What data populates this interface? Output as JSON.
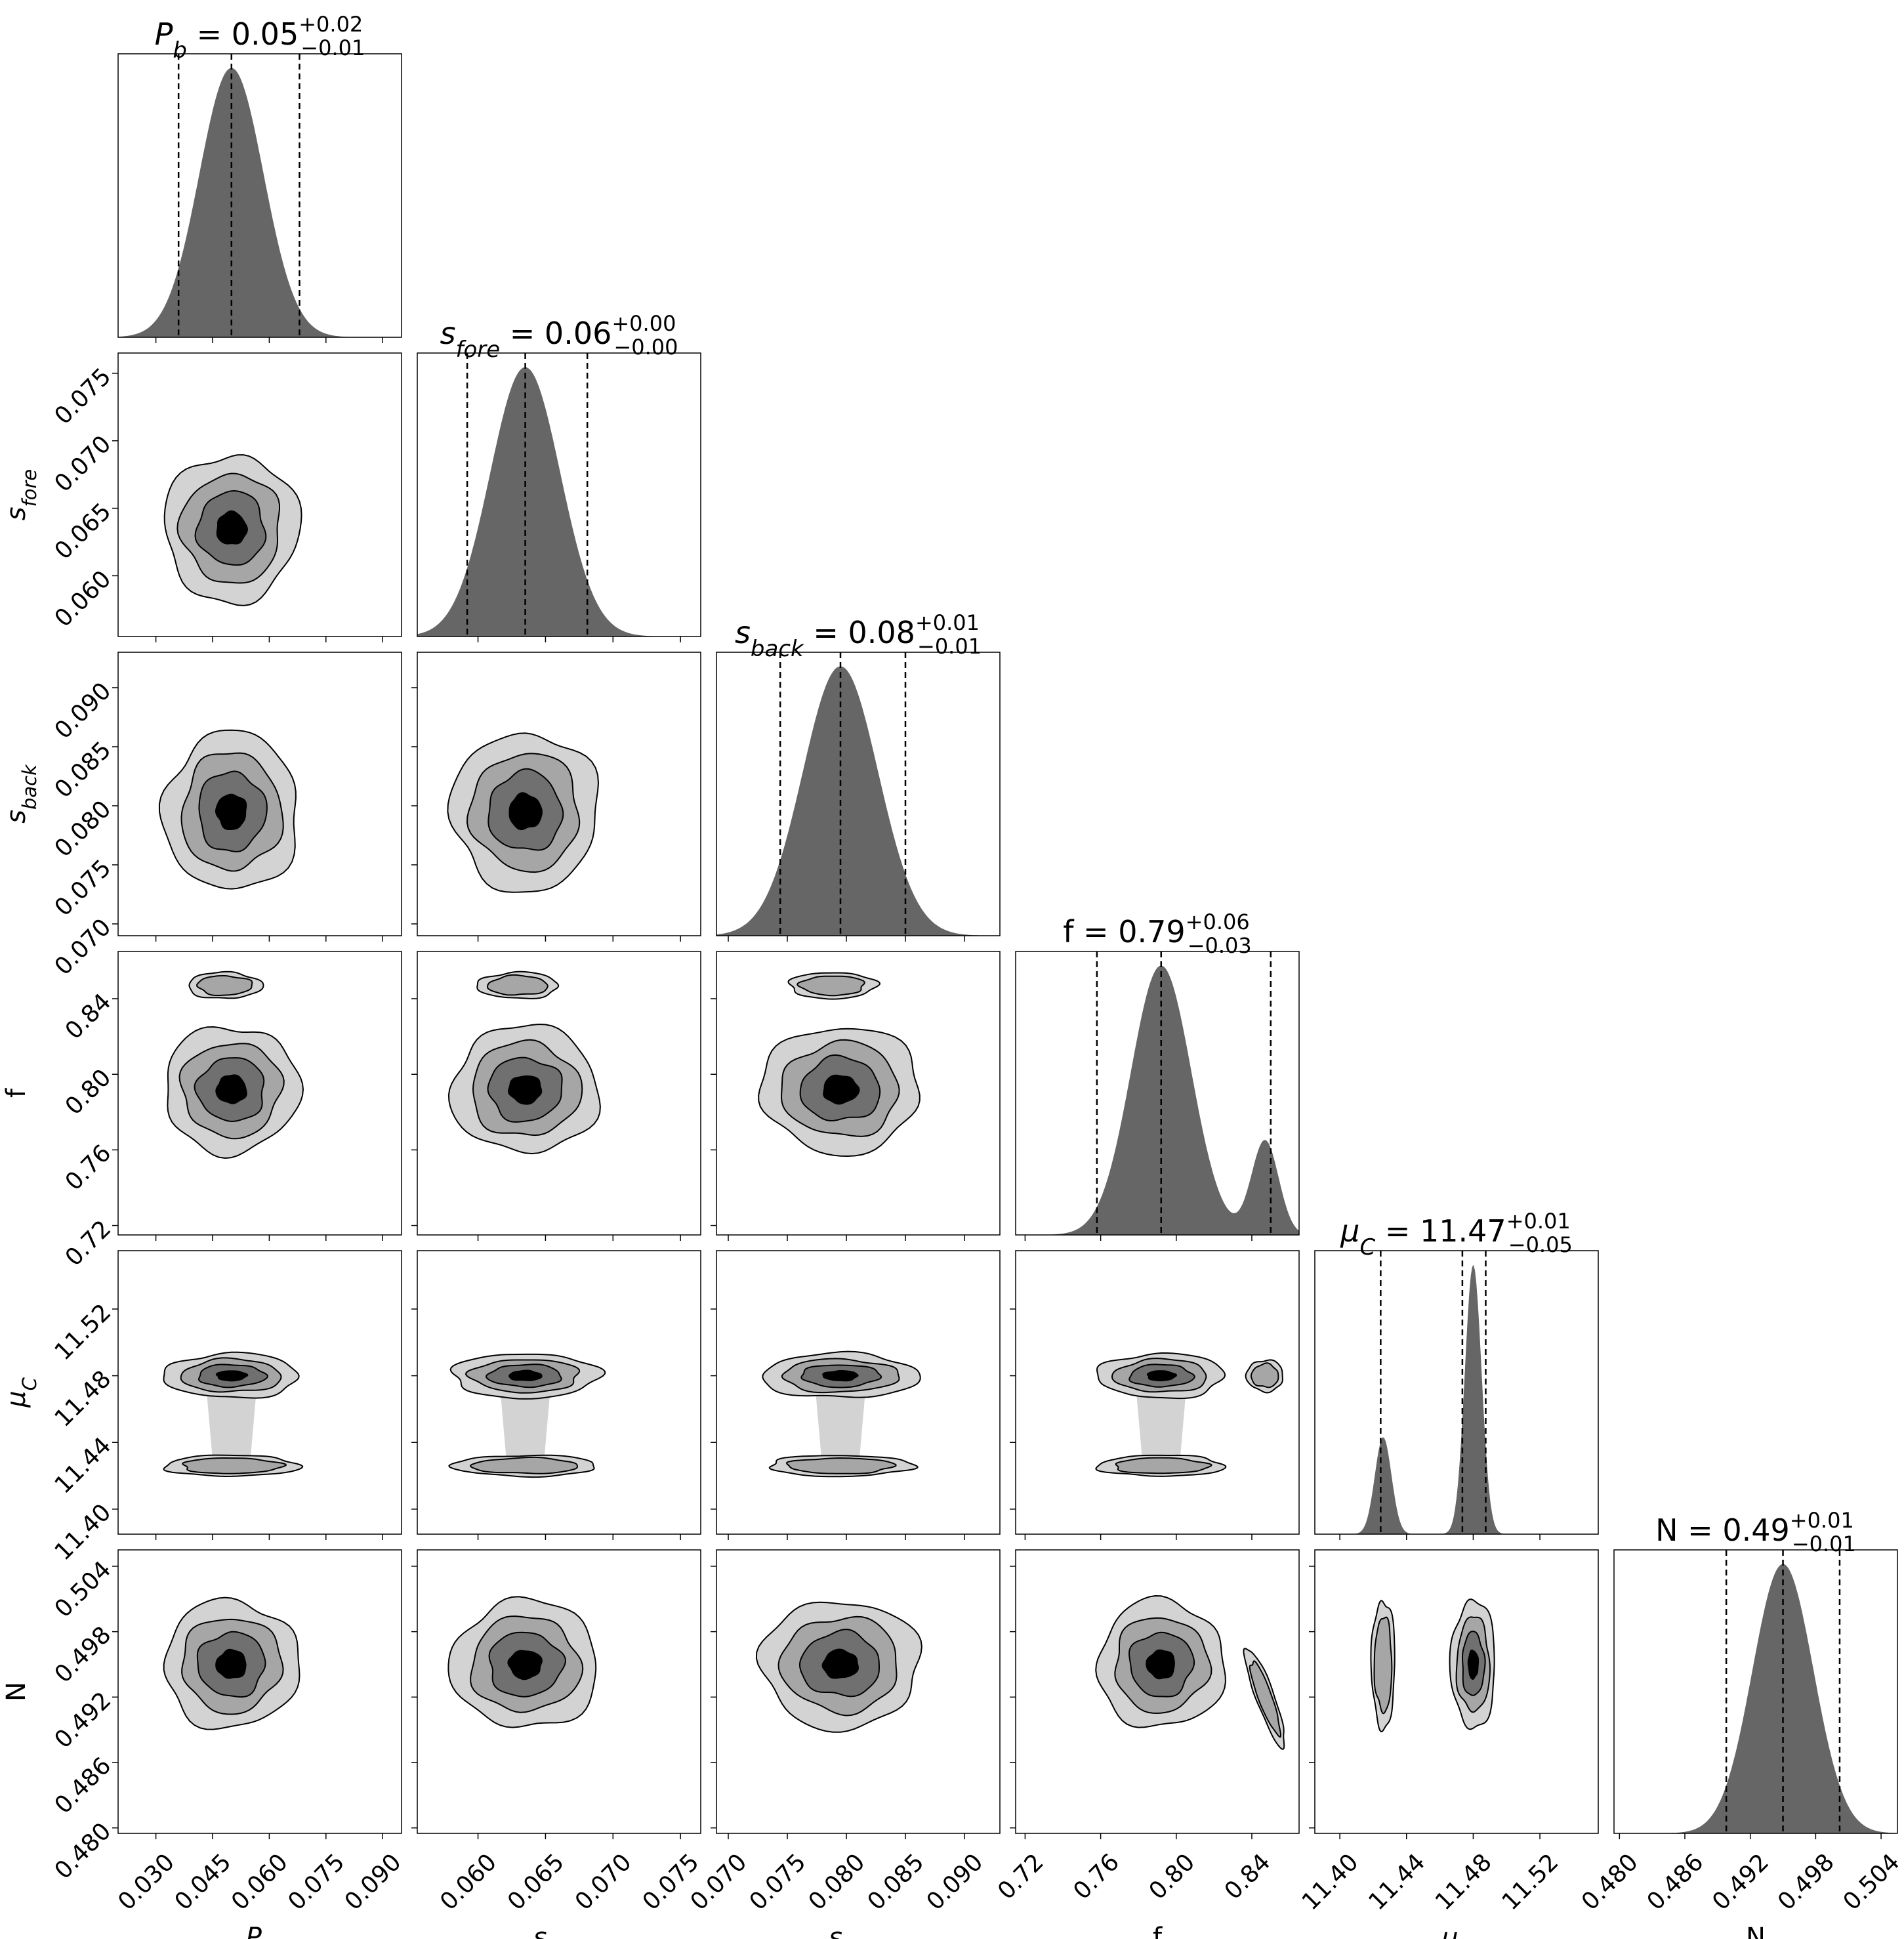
{
  "chart_data": {
    "type": "corner",
    "parameters": [
      {
        "key": "Pb",
        "label_base": "P",
        "label_sub": "b",
        "title_value": "0.05",
        "title_plus": "+0.02",
        "title_minus": "−0.01",
        "range": [
          0.02,
          0.095
        ],
        "ticks": [
          "0.030",
          "0.045",
          "0.060",
          "0.075",
          "0.090"
        ],
        "tick_values": [
          0.03,
          0.045,
          0.06,
          0.075,
          0.09
        ],
        "quantiles": [
          0.036,
          0.05,
          0.068
        ],
        "peak": 0.05,
        "sigma": 0.0085
      },
      {
        "key": "sfore",
        "label_base": "s",
        "label_sub": "fore",
        "title_value": "0.06",
        "title_plus": "+0.00",
        "title_minus": "−0.00",
        "range": [
          0.0555,
          0.0765
        ],
        "ticks": [
          "0.060",
          "0.065",
          "0.070",
          "0.075"
        ],
        "tick_values": [
          0.06,
          0.065,
          0.07,
          0.075
        ],
        "quantiles": [
          0.0592,
          0.0635,
          0.0681
        ],
        "peak": 0.0635,
        "sigma": 0.0026
      },
      {
        "key": "sback",
        "label_base": "s",
        "label_sub": "back",
        "title_value": "0.08",
        "title_plus": "+0.01",
        "title_minus": "−0.01",
        "range": [
          0.069,
          0.093
        ],
        "ticks": [
          "0.070",
          "0.075",
          "0.080",
          "0.085",
          "0.090"
        ],
        "tick_values": [
          0.07,
          0.075,
          0.08,
          0.085,
          0.09
        ],
        "quantiles": [
          0.0744,
          0.0795,
          0.085
        ],
        "peak": 0.0795,
        "sigma": 0.0032
      },
      {
        "key": "f",
        "label_base": "f",
        "label_sub": "",
        "title_value": "0.79",
        "title_plus": "+0.06",
        "title_minus": "−0.03",
        "range": [
          0.715,
          0.865
        ],
        "ticks": [
          "0.72",
          "0.76",
          "0.80",
          "0.84"
        ],
        "tick_values": [
          0.72,
          0.76,
          0.8,
          0.84
        ],
        "quantiles": [
          0.758,
          0.792,
          0.85
        ],
        "peak": 0.792,
        "sigma": 0.016,
        "second_peak": 0.847,
        "second_amp": 0.35
      },
      {
        "key": "muC",
        "label_base": "μ",
        "label_sub": "C",
        "title_value": "11.47",
        "title_plus": "+0.01",
        "title_minus": "−0.05",
        "range": [
          11.385,
          11.555
        ],
        "ticks": [
          "11.40",
          "11.44",
          "11.48",
          "11.52"
        ],
        "tick_values": [
          11.4,
          11.44,
          11.48,
          11.52
        ],
        "quantiles": [
          11.4245,
          11.4735,
          11.4875
        ],
        "peak": 11.48,
        "sigma": 0.005,
        "second_peak": 11.426,
        "second_amp": 0.36
      },
      {
        "key": "N",
        "label_base": "N",
        "label_sub": "",
        "title_value": "0.49",
        "title_plus": "+0.01",
        "title_minus": "−0.01",
        "range": [
          0.4795,
          0.5055
        ],
        "ticks": [
          "0.480",
          "0.486",
          "0.492",
          "0.498",
          "0.504"
        ],
        "tick_values": [
          0.48,
          0.486,
          0.492,
          0.498,
          0.504
        ],
        "quantiles": [
          0.4898,
          0.495,
          0.5002
        ],
        "peak": 0.495,
        "sigma": 0.0028
      }
    ],
    "contour_levels": 4,
    "contour_fill_colors": [
      "#d3d3d3",
      "#a6a6a6",
      "#707070",
      "#000000"
    ],
    "histogram_fill_color": "#666666",
    "quantile_line_style": "dashed",
    "grid": false
  }
}
